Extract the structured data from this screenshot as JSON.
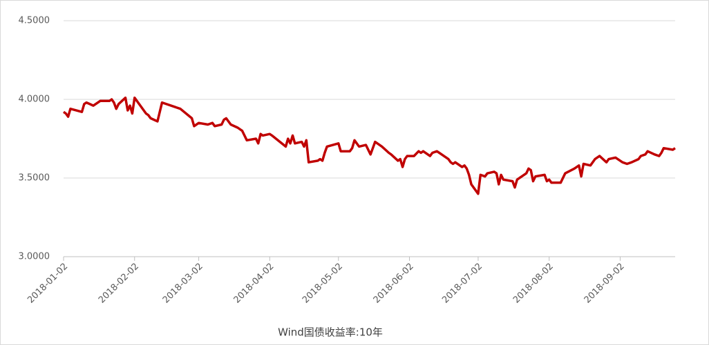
{
  "chart_data": {
    "type": "line",
    "x": [
      "2018-01-02",
      "2018-01-03",
      "2018-01-04",
      "2018-01-05",
      "2018-01-10",
      "2018-01-11",
      "2018-01-12",
      "2018-01-15",
      "2018-01-18",
      "2018-01-22",
      "2018-01-23",
      "2018-01-24",
      "2018-01-25",
      "2018-01-26",
      "2018-01-29",
      "2018-01-30",
      "2018-01-31",
      "2018-02-01",
      "2018-02-02",
      "2018-02-05",
      "2018-02-07",
      "2018-02-08",
      "2018-02-09",
      "2018-02-12",
      "2018-02-13",
      "2018-02-14",
      "2018-02-22",
      "2018-02-27",
      "2018-02-28",
      "2018-03-02",
      "2018-03-06",
      "2018-03-08",
      "2018-03-09",
      "2018-03-12",
      "2018-03-13",
      "2018-03-14",
      "2018-03-16",
      "2018-03-19",
      "2018-03-21",
      "2018-03-23",
      "2018-03-27",
      "2018-03-28",
      "2018-03-29",
      "2018-03-30",
      "2018-04-02",
      "2018-04-03",
      "2018-04-09",
      "2018-04-10",
      "2018-04-11",
      "2018-04-12",
      "2018-04-13",
      "2018-04-16",
      "2018-04-17",
      "2018-04-18",
      "2018-04-19",
      "2018-04-23",
      "2018-04-24",
      "2018-04-25",
      "2018-04-26",
      "2018-04-27",
      "2018-05-02",
      "2018-05-03",
      "2018-05-07",
      "2018-05-08",
      "2018-05-09",
      "2018-05-11",
      "2018-05-14",
      "2018-05-16",
      "2018-05-18",
      "2018-05-21",
      "2018-05-24",
      "2018-05-25",
      "2018-05-28",
      "2018-05-29",
      "2018-05-30",
      "2018-05-31",
      "2018-06-01",
      "2018-06-04",
      "2018-06-06",
      "2018-06-07",
      "2018-06-08",
      "2018-06-11",
      "2018-06-12",
      "2018-06-14",
      "2018-06-19",
      "2018-06-20",
      "2018-06-21",
      "2018-06-22",
      "2018-06-25",
      "2018-06-26",
      "2018-06-27",
      "2018-06-28",
      "2018-06-29",
      "2018-07-02",
      "2018-07-03",
      "2018-07-05",
      "2018-07-06",
      "2018-07-09",
      "2018-07-10",
      "2018-07-11",
      "2018-07-12",
      "2018-07-13",
      "2018-07-17",
      "2018-07-18",
      "2018-07-19",
      "2018-07-23",
      "2018-07-24",
      "2018-07-25",
      "2018-07-26",
      "2018-07-27",
      "2018-07-31",
      "2018-08-01",
      "2018-08-02",
      "2018-08-03",
      "2018-08-07",
      "2018-08-09",
      "2018-08-13",
      "2018-08-15",
      "2018-08-16",
      "2018-08-17",
      "2018-08-20",
      "2018-08-22",
      "2018-08-24",
      "2018-08-27",
      "2018-08-28",
      "2018-08-31",
      "2018-09-03",
      "2018-09-05",
      "2018-09-07",
      "2018-09-10",
      "2018-09-11",
      "2018-09-13",
      "2018-09-14",
      "2018-09-17",
      "2018-09-19",
      "2018-09-20",
      "2018-09-21",
      "2018-09-25",
      "2018-09-26"
    ],
    "series": [
      {
        "name": "Wind国债收益率:10年",
        "color": "#c00000",
        "values": [
          3.92,
          3.91,
          3.89,
          3.94,
          3.92,
          3.97,
          3.98,
          3.96,
          3.99,
          3.99,
          4.0,
          3.98,
          3.94,
          3.97,
          4.01,
          3.93,
          3.96,
          3.91,
          4.01,
          3.95,
          3.91,
          3.9,
          3.88,
          3.86,
          3.92,
          3.98,
          3.94,
          3.88,
          3.83,
          3.85,
          3.84,
          3.85,
          3.83,
          3.84,
          3.87,
          3.88,
          3.84,
          3.82,
          3.8,
          3.74,
          3.75,
          3.72,
          3.78,
          3.77,
          3.78,
          3.77,
          3.7,
          3.75,
          3.72,
          3.77,
          3.72,
          3.73,
          3.7,
          3.74,
          3.6,
          3.61,
          3.62,
          3.61,
          3.66,
          3.7,
          3.72,
          3.67,
          3.67,
          3.69,
          3.74,
          3.7,
          3.71,
          3.65,
          3.73,
          3.7,
          3.66,
          3.65,
          3.61,
          3.62,
          3.57,
          3.62,
          3.64,
          3.64,
          3.67,
          3.66,
          3.67,
          3.64,
          3.66,
          3.67,
          3.62,
          3.6,
          3.59,
          3.6,
          3.57,
          3.58,
          3.56,
          3.52,
          3.46,
          3.4,
          3.52,
          3.51,
          3.53,
          3.54,
          3.53,
          3.46,
          3.52,
          3.49,
          3.48,
          3.44,
          3.49,
          3.53,
          3.56,
          3.55,
          3.48,
          3.51,
          3.52,
          3.48,
          3.49,
          3.47,
          3.47,
          3.53,
          3.56,
          3.58,
          3.51,
          3.59,
          3.58,
          3.62,
          3.64,
          3.6,
          3.62,
          3.63,
          3.6,
          3.59,
          3.6,
          3.62,
          3.64,
          3.65,
          3.67,
          3.65,
          3.64,
          3.66,
          3.69,
          3.68,
          3.69
        ]
      }
    ],
    "xlim": [
      "2018-01-02",
      "2018-09-26"
    ],
    "xticks": [
      "2018-01-02",
      "2018-02-02",
      "2018-03-02",
      "2018-04-02",
      "2018-05-02",
      "2018-06-02",
      "2018-07-02",
      "2018-08-02",
      "2018-09-02"
    ],
    "ylim": [
      3.0,
      4.5
    ],
    "yticks": [
      {
        "value": 3.0,
        "label": "3.0000"
      },
      {
        "value": 3.5,
        "label": "3.5000"
      },
      {
        "value": 4.0,
        "label": "4.0000"
      },
      {
        "value": 4.5,
        "label": "4.5000"
      }
    ],
    "grid": true
  }
}
